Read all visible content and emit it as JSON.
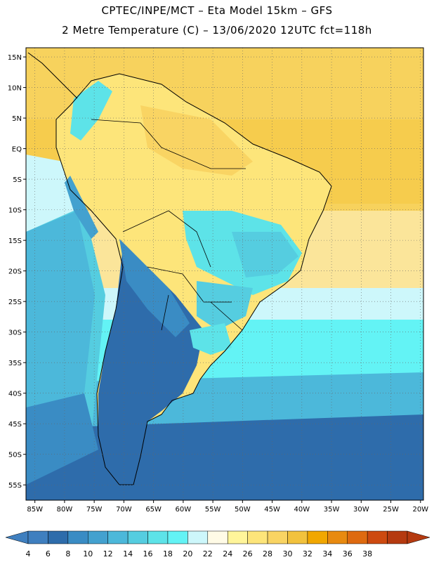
{
  "header": {
    "line1": "CPTEC/INPE/MCT –  Eta Model 15km – GFS",
    "line2": "2 Metre Temperature (C) – 13/06/2020 12UTC fct=118h"
  },
  "map": {
    "lat_labels": [
      "15N",
      "10N",
      "5N",
      "EQ",
      "5S",
      "10S",
      "15S",
      "20S",
      "25S",
      "30S",
      "35S",
      "40S",
      "45S",
      "50S",
      "55S"
    ],
    "lon_labels": [
      "85W",
      "80W",
      "75W",
      "70W",
      "65W",
      "60W",
      "55W",
      "50W",
      "45W",
      "40W",
      "35W",
      "30W",
      "25W",
      "20W"
    ],
    "lat_values": [
      15,
      10,
      5,
      0,
      -5,
      -10,
      -15,
      -20,
      -25,
      -30,
      -35,
      -40,
      -45,
      -50,
      -55
    ],
    "lon_values": [
      -85,
      -80,
      -75,
      -70,
      -65,
      -60,
      -55,
      -50,
      -45,
      -40,
      -35,
      -30,
      -25,
      -20
    ]
  },
  "colorbar": {
    "labels": [
      "4",
      "6",
      "8",
      "10",
      "12",
      "14",
      "16",
      "18",
      "20",
      "22",
      "24",
      "26",
      "28",
      "30",
      "32",
      "34",
      "36",
      "38"
    ],
    "colors": [
      "#3f7fbf",
      "#2e6cab",
      "#3a8cc4",
      "#43a1cf",
      "#4cb8da",
      "#55cde0",
      "#5de3e8",
      "#63f3f5",
      "#cdf7fb",
      "#fffbe6",
      "#fff59a",
      "#fde57a",
      "#f9d463",
      "#f2c23d",
      "#f1a700",
      "#e88a10",
      "#de6a10",
      "#cd4a10",
      "#b53a10"
    ]
  }
}
